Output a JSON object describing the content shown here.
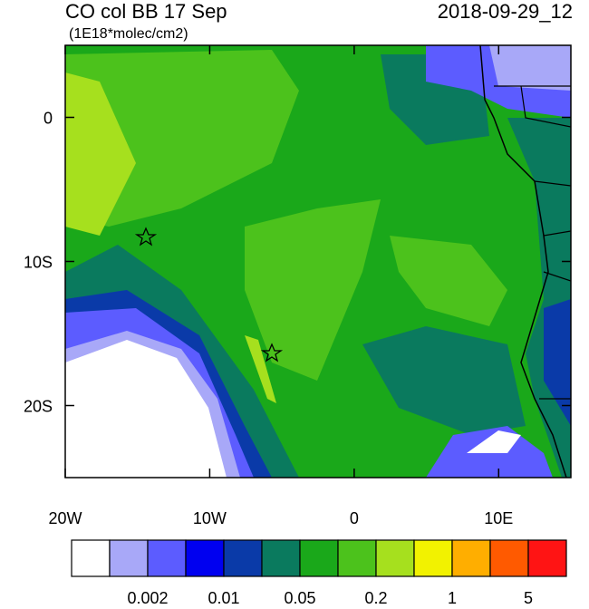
{
  "map": {
    "title": "CO col BB 17 Sep",
    "subtitle": "(1E18*molec/cm2)",
    "date": "2018-09-29_12",
    "lon_range": [
      -20,
      15
    ],
    "lat_range": [
      -25,
      5
    ],
    "lon_ticks": [
      {
        "value": -20,
        "label": "20W"
      },
      {
        "value": -10,
        "label": "10W"
      },
      0,
      {
        "value": 10,
        "label": "10E"
      }
    ],
    "lat_ticks": [
      0,
      {
        "value": -10,
        "label": "10S"
      },
      {
        "value": -20,
        "label": "20S"
      }
    ],
    "colorbar": {
      "colors": [
        "#ffffff",
        "#a8a8f8",
        "#5c5cff",
        "#0000f0",
        "#0a3aa8",
        "#0a7a5e",
        "#1aa81a",
        "#4cc21c",
        "#a6e01e",
        "#f2f200",
        "#ffae00",
        "#ff5a00",
        "#ff1414"
      ],
      "labels": [
        "0.002",
        "0.01",
        "0.05",
        "0.2",
        "1",
        "5"
      ]
    }
  }
}
